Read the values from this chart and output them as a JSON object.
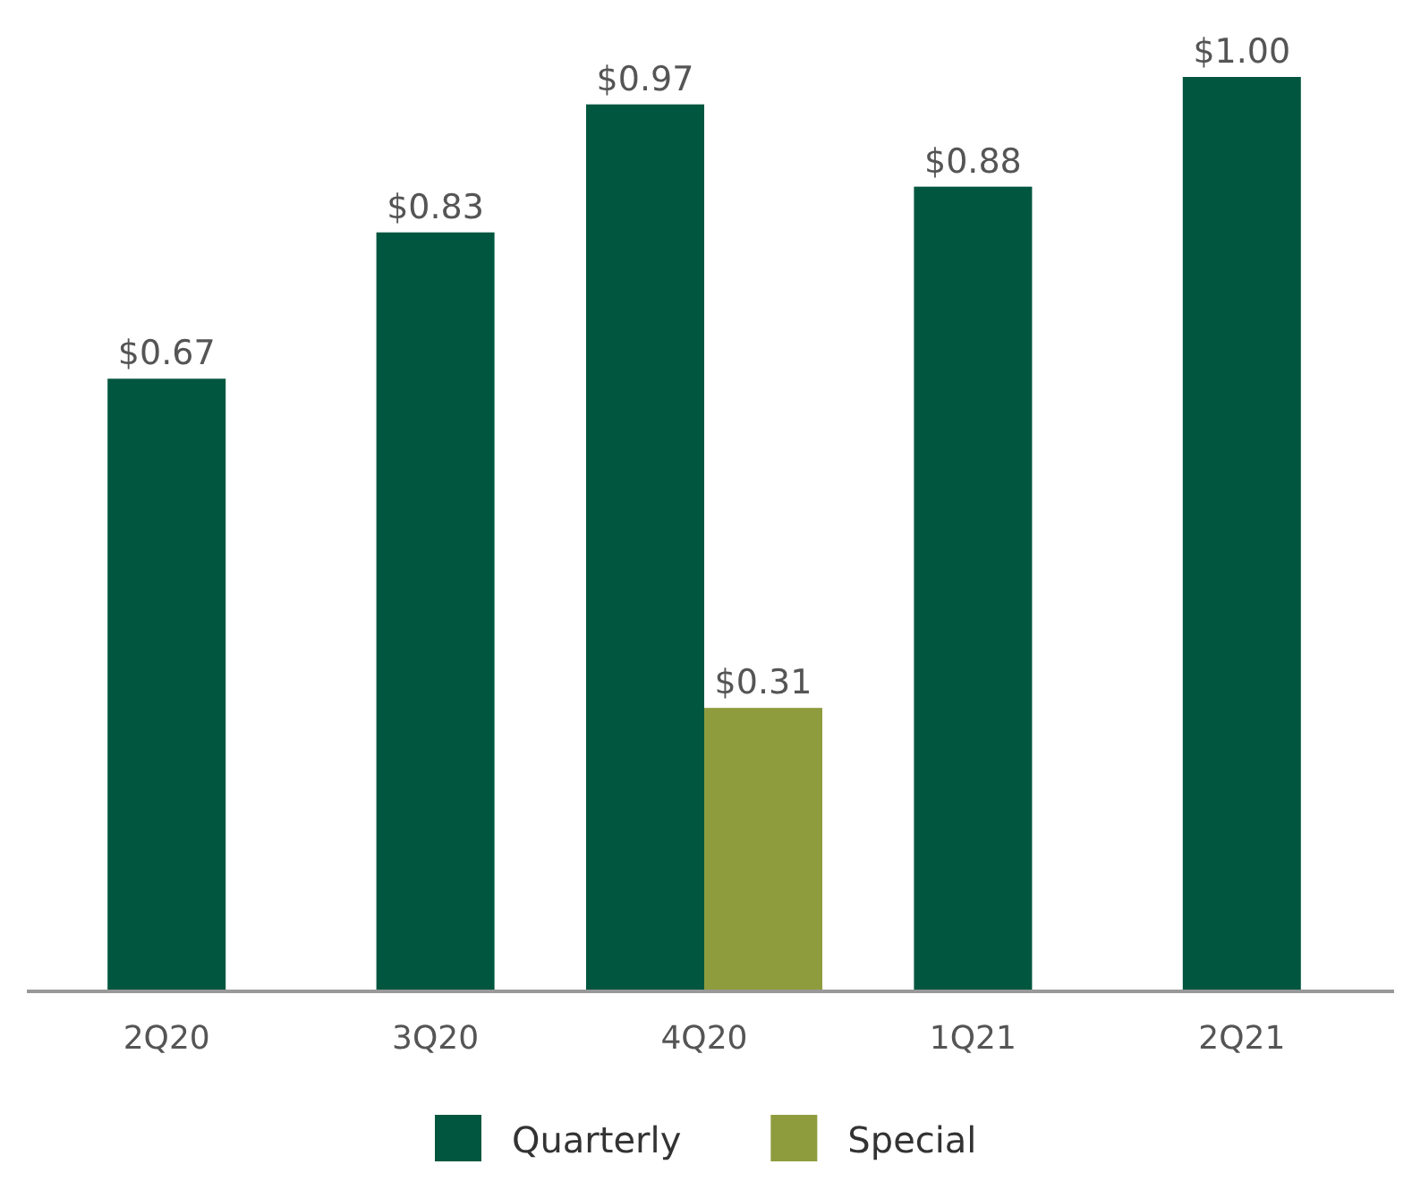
{
  "chart_data": {
    "type": "bar",
    "categories": [
      "2Q20",
      "3Q20",
      "4Q20",
      "1Q21",
      "2Q21"
    ],
    "series": [
      {
        "name": "Quarterly",
        "color": "#00563f",
        "values": [
          0.67,
          0.83,
          0.97,
          0.88,
          1.0
        ],
        "value_labels": [
          "$0.67",
          "$0.83",
          "$0.97",
          "$0.88",
          "$1.00"
        ]
      },
      {
        "name": "Special",
        "color": "#8f9c3e",
        "values": [
          null,
          null,
          0.31,
          null,
          null
        ],
        "value_labels": [
          null,
          null,
          "$0.31",
          null,
          null
        ]
      }
    ],
    "legend": "bottom"
  }
}
